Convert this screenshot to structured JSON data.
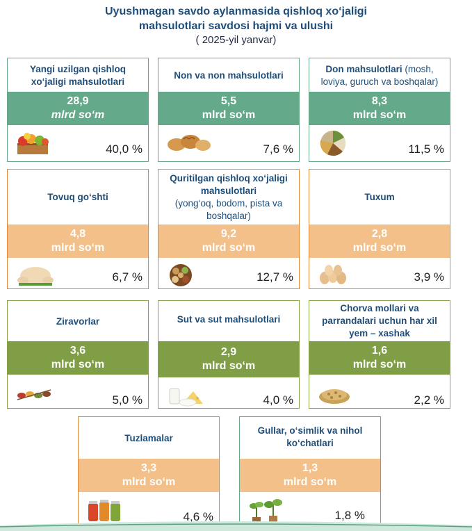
{
  "header": {
    "title_line1": "Uyushmagan savdo aylanmasida qishloq xo‘jaligi",
    "title_line2": "mahsulotlari savdosi hajmi va ulushi",
    "subtitle": "( 2025-yil yanvar)"
  },
  "cards": [
    {
      "title_bold": "Yangi uzilgan qishloq xo‘jaligi mahsulotlari",
      "title_normal": "",
      "value": "28,9",
      "unit": "mlrd so‘m",
      "share": "40,0 %",
      "icon": "fruit-crate-icon"
    },
    {
      "title_bold": "Non va non mahsulotlari",
      "title_normal": "",
      "value": "5,5",
      "unit": "mlrd so‘m",
      "share": "7,6 %",
      "icon": "bread-icon"
    },
    {
      "title_bold": "Don mahsulotlari",
      "title_normal": "(mosh, loviya, guruch va boshqalar)",
      "value": "8,3",
      "unit": "mlrd so‘m",
      "share": "11,5 %",
      "icon": "grains-icon"
    },
    {
      "title_bold": "Tovuq go‘shti",
      "title_normal": "",
      "value": "4,8",
      "unit": "mlrd so‘m",
      "share": "6,7 %",
      "icon": "chicken-icon"
    },
    {
      "title_bold": "Quritilgan qishloq xo‘jaligi mahsulotlari",
      "title_normal": "(yong‘oq, bodom, pista va boshqalar)",
      "value": "9,2",
      "unit": "mlrd so‘m",
      "share": "12,7 %",
      "icon": "nuts-icon"
    },
    {
      "title_bold": "Tuxum",
      "title_normal": "",
      "value": "2,8",
      "unit": "mlrd so‘m",
      "share": "3,9 %",
      "icon": "eggs-icon"
    },
    {
      "title_bold": "Ziravorlar",
      "title_normal": "",
      "value": "3,6",
      "unit": "mlrd so‘m",
      "share": "5,0 %",
      "icon": "spices-icon"
    },
    {
      "title_bold": "Sut va sut mahsulotlari",
      "title_normal": "",
      "value": "2,9",
      "unit": "mlrd so‘m",
      "share": "4,0 %",
      "icon": "dairy-icon"
    },
    {
      "title_bold": "Chorva mollari va parrandalari uchun har xil yem – xashak",
      "title_normal": "",
      "value": "1,6",
      "unit": "mlrd so‘m",
      "share": "2,2 %",
      "icon": "feed-pellets-icon"
    },
    {
      "title_bold": "Tuzlamalar",
      "title_normal": "",
      "value": "3,3",
      "unit": "mlrd so‘m",
      "share": "4,6 %",
      "icon": "pickle-jars-icon"
    },
    {
      "title_bold": "Gullar, o‘simlik va nihol ko‘chatlari",
      "title_normal": "",
      "value": "1,3",
      "unit": "mlrd so‘m",
      "share": "1,8 %",
      "icon": "seedlings-icon"
    }
  ],
  "colors": {
    "title": "#1f4e79",
    "green_band": "#64a98a",
    "orange_band": "#f3c08a",
    "olive_band": "#7f9e45"
  }
}
